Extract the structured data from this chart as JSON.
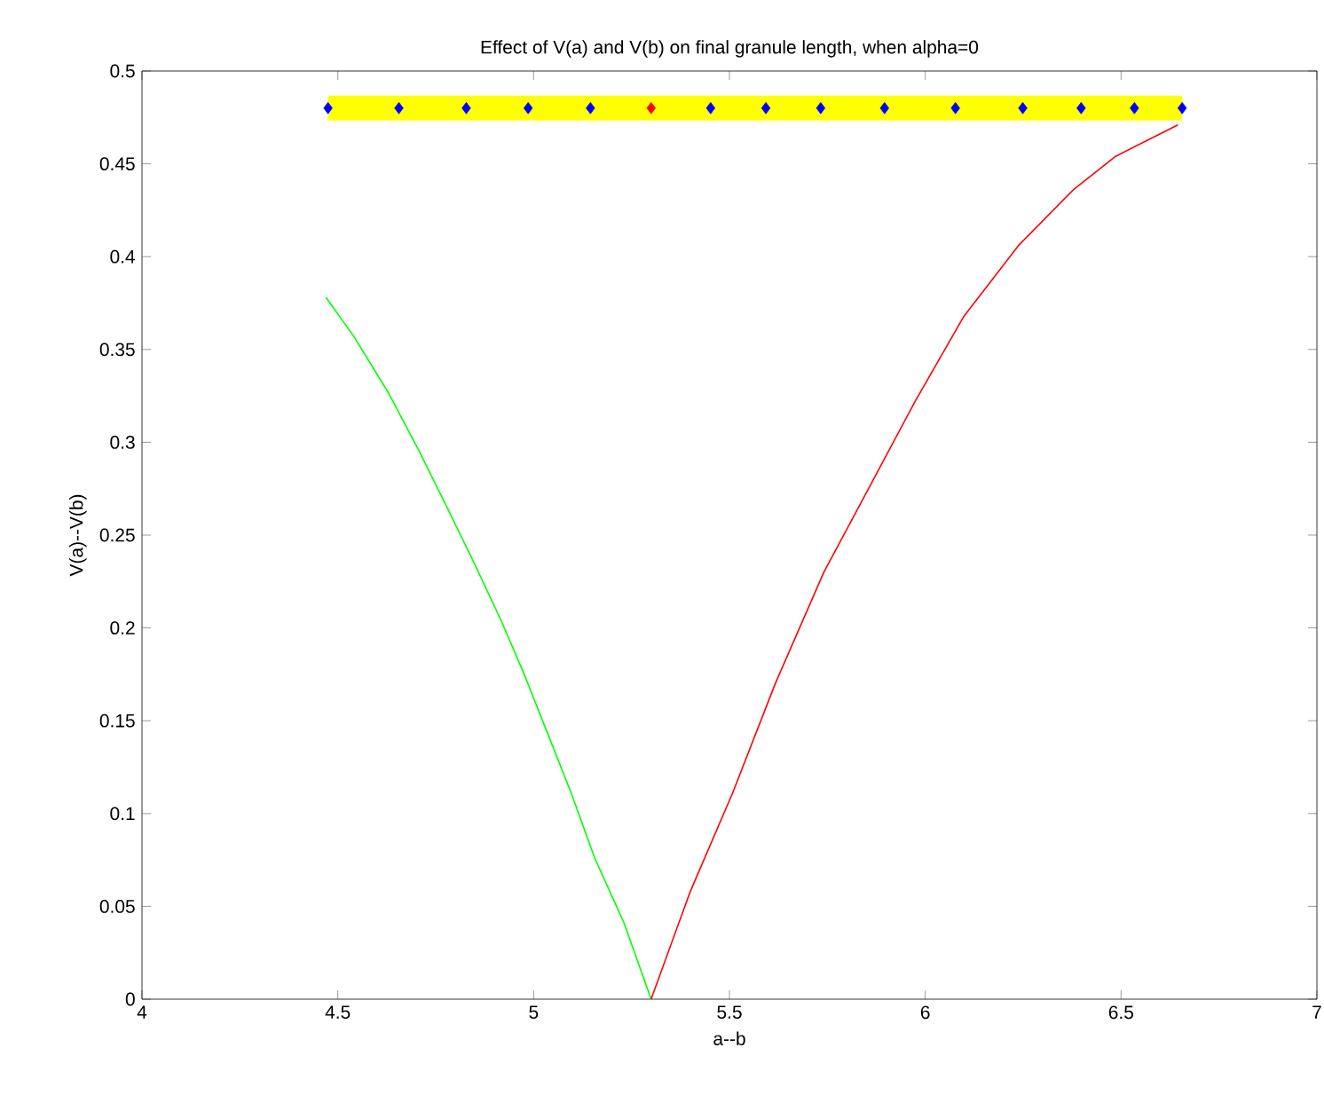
{
  "chart_data": {
    "type": "line",
    "title": "Effect of V(a) and V(b) on final granule length, when alpha=0",
    "xlabel": "a--b",
    "ylabel": "V(a)--V(b)",
    "xlim": [
      4,
      7
    ],
    "xticks": [
      4,
      4.5,
      5,
      5.5,
      6,
      6.5,
      7
    ],
    "ylim": [
      0,
      0.5
    ],
    "yticks": [
      0,
      0.05,
      0.1,
      0.15,
      0.2,
      0.25,
      0.3,
      0.35,
      0.4,
      0.45,
      0.5
    ],
    "grid": false,
    "series": [
      {
        "color": "#ffff00",
        "x": [
          4.475,
          6.656
        ],
        "values": [
          0.48,
          0.48
        ]
      },
      {
        "color": "#00ff00",
        "x": [
          4.47,
          4.541,
          4.631,
          4.706,
          4.781,
          4.848,
          4.917,
          4.976,
          5.036,
          5.096,
          5.156,
          5.231,
          5.3
        ],
        "values": [
          0.378,
          0.357,
          0.326,
          0.296,
          0.264,
          0.235,
          0.204,
          0.175,
          0.143,
          0.111,
          0.076,
          0.041,
          0
        ]
      },
      {
        "color": "#ff0000",
        "x": [
          5.3,
          5.4,
          5.508,
          5.617,
          5.741,
          5.85,
          5.974,
          6.099,
          6.238,
          6.378,
          6.486,
          6.645
        ],
        "values": [
          0,
          0.058,
          0.111,
          0.17,
          0.23,
          0.273,
          0.322,
          0.368,
          0.406,
          0.436,
          0.454,
          0.471
        ]
      },
      {
        "type": "scatter",
        "marker": "diamond",
        "color": "#0000ff",
        "x": [
          4.475,
          4.656,
          4.828,
          4.986,
          5.145,
          5.452,
          5.593,
          5.733,
          5.896,
          6.077,
          6.249,
          6.398,
          6.534,
          6.656
        ],
        "values": [
          0.48,
          0.48,
          0.48,
          0.48,
          0.48,
          0.48,
          0.48,
          0.48,
          0.48,
          0.48,
          0.48,
          0.48,
          0.48,
          0.48
        ]
      },
      {
        "type": "scatter",
        "marker": "diamond",
        "color": "#ff0000",
        "x": [
          5.3
        ],
        "values": [
          0.48
        ]
      }
    ]
  }
}
